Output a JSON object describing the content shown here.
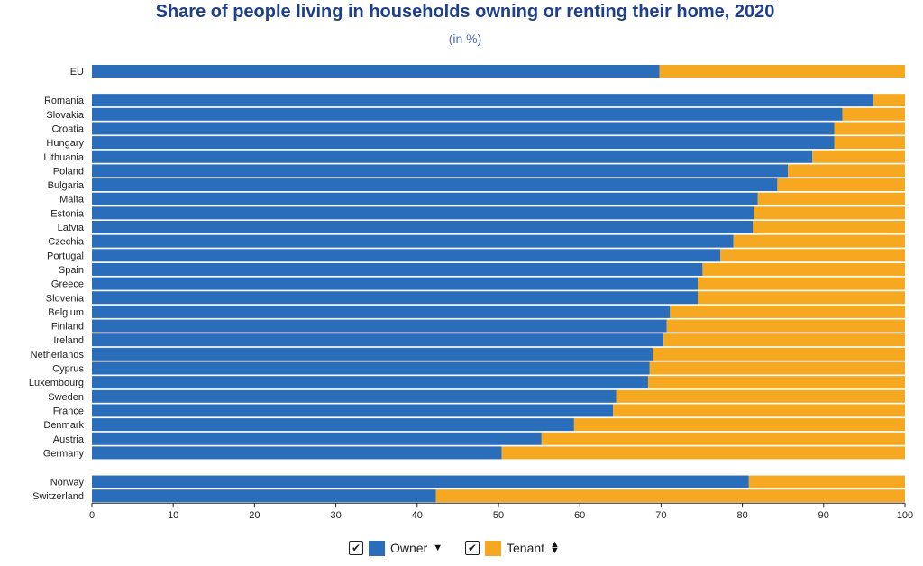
{
  "chart_data": {
    "type": "bar",
    "orientation": "horizontal",
    "stacked": true,
    "title": "Share of people living in households owning or renting their home, 2020",
    "subtitle": "(in %)",
    "categories": [
      "EU",
      "Romania",
      "Slovakia",
      "Croatia",
      "Hungary",
      "Lithuania",
      "Poland",
      "Bulgaria",
      "Malta",
      "Estonia",
      "Latvia",
      "Czechia",
      "Portugal",
      "Spain",
      "Greece",
      "Slovenia",
      "Belgium",
      "Finland",
      "Ireland",
      "Netherlands",
      "Cyprus",
      "Luxembourg",
      "Sweden",
      "France",
      "Denmark",
      "Austria",
      "Germany",
      "Norway",
      "Switzerland"
    ],
    "groups": [
      [
        0,
        0
      ],
      [
        1,
        26
      ],
      [
        27,
        28
      ]
    ],
    "series": [
      {
        "name": "Owner",
        "color": "#2a6ebb",
        "values": [
          69.8,
          96.1,
          92.3,
          91.3,
          91.3,
          88.6,
          85.6,
          84.3,
          81.9,
          81.4,
          81.3,
          78.9,
          77.3,
          75.1,
          74.5,
          74.5,
          71.1,
          70.7,
          70.3,
          69.0,
          68.6,
          68.4,
          64.5,
          64.1,
          59.3,
          55.3,
          50.4,
          80.8,
          42.3
        ]
      },
      {
        "name": "Tenant",
        "color": "#f6a821",
        "values": [
          30.2,
          3.9,
          7.7,
          8.7,
          8.7,
          11.4,
          14.4,
          15.7,
          18.1,
          18.6,
          18.7,
          21.1,
          22.7,
          24.9,
          25.5,
          25.5,
          28.9,
          29.3,
          29.7,
          31.0,
          31.4,
          31.6,
          35.5,
          35.9,
          40.7,
          44.7,
          49.6,
          19.2,
          57.7
        ]
      }
    ],
    "xlim": [
      0,
      100
    ],
    "xticks": [
      "0",
      "10",
      "20",
      "30",
      "40",
      "50",
      "60",
      "70",
      "80",
      "90",
      "100"
    ],
    "grid": false,
    "legend_position": "bottom-center"
  },
  "legend": {
    "items": [
      {
        "label": "Owner",
        "color": "#2a6ebb",
        "checked": "✔",
        "sort_icon": "sort-down-icon"
      },
      {
        "label": "Tenant",
        "color": "#f6a821",
        "checked": "✔",
        "sort_icon": "sort-both-icon"
      }
    ]
  }
}
